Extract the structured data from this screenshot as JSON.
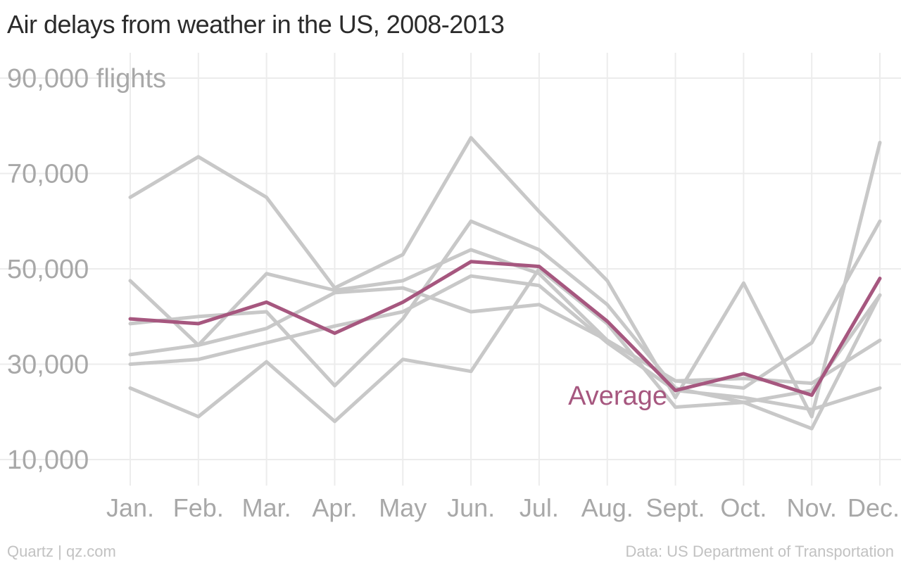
{
  "chart_data": {
    "type": "line",
    "title": "Air delays from weather in the US, 2008-2013",
    "categories": [
      "Jan.",
      "Feb.",
      "Mar.",
      "Apr.",
      "May",
      "Jun.",
      "Jul.",
      "Aug.",
      "Sept.",
      "Oct.",
      "Nov.",
      "Dec."
    ],
    "y_ticks": [
      10000,
      30000,
      50000,
      70000,
      90000
    ],
    "y_tick_labels": [
      "10,000",
      "30,000",
      "50,000",
      "70,000",
      "90,000 flights"
    ],
    "ylim": [
      5000,
      92000
    ],
    "grid": true,
    "series": [
      {
        "values": [
          65000,
          73500,
          65000,
          46000,
          53000,
          77500,
          62000,
          47500,
          23000,
          47000,
          19000,
          76500
        ]
      },
      {
        "values": [
          47500,
          34000,
          49000,
          45500,
          47500,
          54000,
          49000,
          35000,
          26500,
          25000,
          34500,
          60000
        ]
      },
      {
        "values": [
          38500,
          40000,
          41000,
          25500,
          39500,
          60000,
          54000,
          42500,
          25000,
          22000,
          24500,
          44500
        ]
      },
      {
        "values": [
          32000,
          34000,
          37500,
          45000,
          46000,
          41000,
          42500,
          35000,
          26500,
          27000,
          26000,
          35000
        ]
      },
      {
        "values": [
          30000,
          31000,
          34500,
          38000,
          41000,
          48500,
          46500,
          34500,
          24500,
          23000,
          20500,
          25000
        ]
      },
      {
        "values": [
          25000,
          19000,
          30500,
          18000,
          31000,
          28500,
          50000,
          38500,
          21000,
          22000,
          16500,
          44500
        ]
      },
      {
        "name": "Average",
        "values": [
          39500,
          38500,
          43000,
          36500,
          43000,
          51500,
          50500,
          39000,
          24500,
          28000,
          23500,
          48000
        ],
        "color": "#a6577f"
      }
    ],
    "other_series_color": "#c8c8c8"
  },
  "source": "Data: US Department of Transportation",
  "credit": "Quartz | qz.com"
}
